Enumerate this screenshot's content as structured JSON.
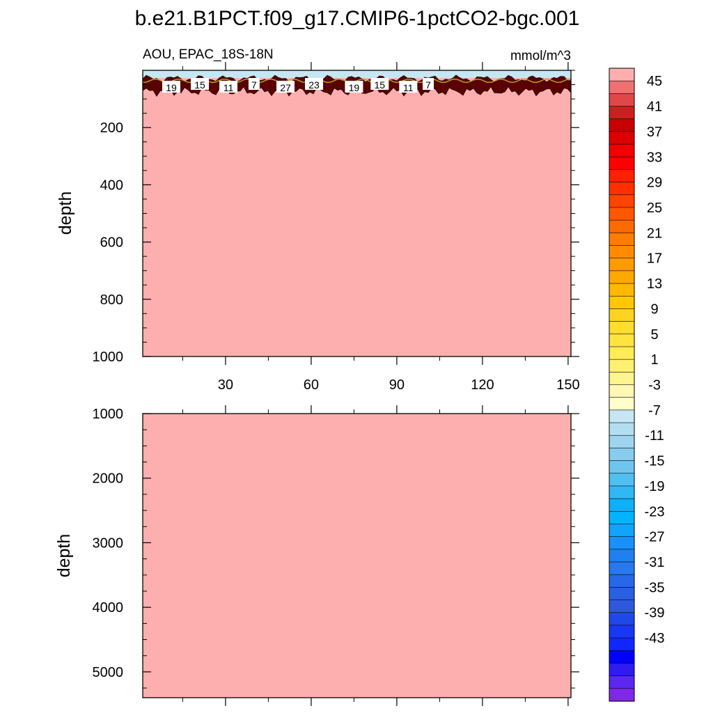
{
  "title": "b.e21.B1PCT.f09_g17.CMIP6-1pctCO2-bgc.001",
  "chart_data": {
    "type": "heatmap",
    "variable_label": "AOU, EPAC_18S-18N",
    "units": "mmol/m^3",
    "fill_color": "#fdafaf",
    "panels": [
      {
        "name": "upper",
        "ylabel": "depth",
        "ylim": [
          0,
          1000
        ],
        "y_inverted": true,
        "yticks": [
          "200",
          "400",
          "600",
          "800",
          "1000"
        ],
        "xticks": [
          "30",
          "60",
          "90",
          "120",
          "150"
        ],
        "xlim": [
          1,
          151
        ],
        "contour_labels": [
          {
            "text": "19",
            "x": 11
          },
          {
            "text": "15",
            "x": 21
          },
          {
            "text": "11",
            "x": 31
          },
          {
            "text": "7",
            "x": 40
          },
          {
            "text": "27",
            "x": 51
          },
          {
            "text": "23",
            "x": 61
          },
          {
            "text": "19",
            "x": 75
          },
          {
            "text": "15",
            "x": 84
          },
          {
            "text": "11",
            "x": 94
          },
          {
            "text": "7",
            "x": 101
          }
        ]
      },
      {
        "name": "lower",
        "ylabel": "depth",
        "ylim": [
          1000,
          5400
        ],
        "y_inverted": true,
        "yticks": [
          "1000",
          "2000",
          "3000",
          "4000",
          "5000"
        ],
        "xlim": [
          1,
          151
        ]
      }
    ],
    "colorbar": {
      "labels": [
        "45",
        "41",
        "37",
        "33",
        "29",
        "25",
        "21",
        "17",
        "13",
        "9",
        "5",
        "1",
        "-3",
        "-7",
        "-11",
        "-15",
        "-19",
        "-23",
        "-27",
        "-31",
        "-35",
        "-39",
        "-43"
      ],
      "colors": [
        "#fdafaf",
        "#ef7070",
        "#e04848",
        "#cc2020",
        "#c80000",
        "#dc0000",
        "#f00000",
        "#ff0000",
        "#ff2000",
        "#ff3000",
        "#ff4400",
        "#ff5800",
        "#ff6a00",
        "#ff7c00",
        "#ff8c00",
        "#ff9a00",
        "#ffa800",
        "#ffb800",
        "#ffc800",
        "#ffd420",
        "#ffdc30",
        "#ffe440",
        "#ffec58",
        "#fff070",
        "#fff490",
        "#fff8b4",
        "#ffffcc",
        "#c6e6f3",
        "#b2def0",
        "#9ed4ee",
        "#88ccec",
        "#6ec6ee",
        "#50c0f0",
        "#30b8f4",
        "#10b0f8",
        "#00b4ff",
        "#10a4ff",
        "#1890ff",
        "#2080f0",
        "#2878ee",
        "#2868e8",
        "#2860e4",
        "#3058dc",
        "#2048e8",
        "#1838f4",
        "#1028ff",
        "#0000ff",
        "#2e1cf0",
        "#5a28f0",
        "#8028e8"
      ]
    }
  }
}
